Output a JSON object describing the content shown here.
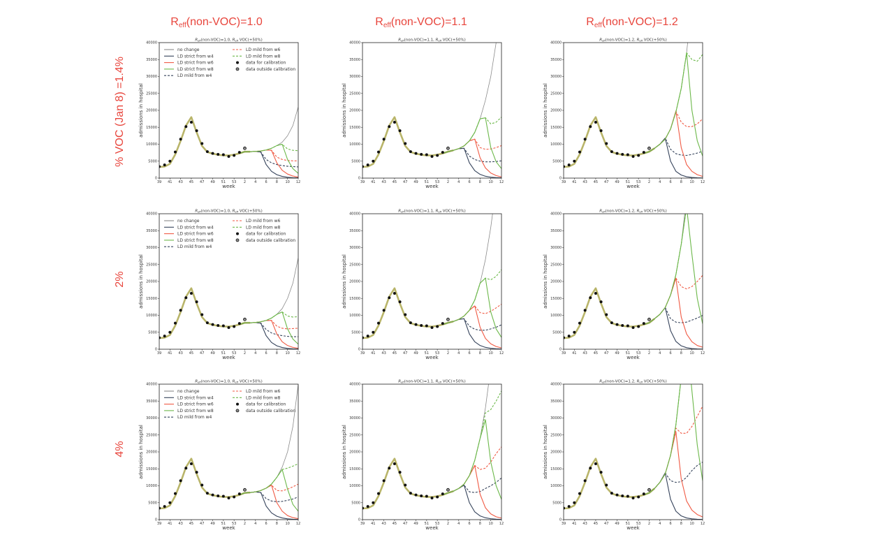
{
  "column_titles": [
    {
      "main": "R",
      "sub": "eff",
      "rest": "(non-VOC)=1.0"
    },
    {
      "main": "R",
      "sub": "eff",
      "rest": "(non-VOC)=1.1"
    },
    {
      "main": "R",
      "sub": "eff",
      "rest": "(non-VOC)=1.2"
    }
  ],
  "row_labels": [
    "% VOC (Jan 8) =1.4%",
    "2%",
    "4%"
  ],
  "common": {
    "type": "line",
    "xlabel": "week",
    "ylabel": "admissions in hospital",
    "ylim": [
      0,
      40000
    ],
    "yticks": [
      0,
      5000,
      10000,
      15000,
      20000,
      25000,
      30000,
      35000,
      40000
    ],
    "weeks": [
      39,
      40,
      41,
      42,
      43,
      44,
      45,
      46,
      47,
      48,
      49,
      50,
      51,
      52,
      53,
      1,
      2,
      3,
      4,
      5,
      6,
      7,
      8,
      9,
      10,
      11,
      12
    ],
    "xtick_labels": [
      "39",
      "41",
      "43",
      "45",
      "47",
      "49",
      "51",
      "53",
      "2",
      "4",
      "6",
      "8",
      "10",
      "12"
    ],
    "model_fit_weeks_39_to_1": [
      3300,
      3400,
      4200,
      7000,
      11000,
      15500,
      18000,
      13500,
      9500,
      7700,
      7200,
      6900,
      6700,
      6700,
      6900,
      7300
    ],
    "projection_weeks": [
      2,
      3,
      4,
      5,
      6,
      7,
      8,
      9,
      10,
      11,
      12
    ],
    "data_for_calibration": {
      "weeks": [
        39,
        40,
        41,
        42,
        43,
        44,
        45,
        46,
        47,
        48,
        49,
        50,
        51,
        52,
        53,
        1
      ],
      "values": [
        3400,
        3900,
        5000,
        7700,
        11500,
        15200,
        16500,
        14000,
        10200,
        7800,
        7300,
        7000,
        6900,
        6400,
        6700,
        7600
      ]
    },
    "data_outside_calibration": {
      "weeks": [
        2
      ],
      "values": [
        8800
      ]
    },
    "legend": {
      "no_change": "no change",
      "strict_w4": "LD strict from w4",
      "strict_w6": "LD strict from w6",
      "strict_w8": "LD strict from w8",
      "mild_w4": "LD mild from w4",
      "mild_w6": "LD mild from w6",
      "mild_w8": "LD mild from w8",
      "data_cal": "data for calibration",
      "data_out": "data outside calibration"
    },
    "colors": {
      "no_change": "#8a8a8a",
      "w4": "#34425a",
      "w6": "#f05a44",
      "w8": "#6cb84a",
      "fit": "#b9b56a",
      "data": "#111111",
      "title": "#e8453c"
    }
  },
  "chart_data": [
    {
      "title": {
        "r": "R",
        "sub": "eff",
        "a": "(non-VOC)=1.0, ",
        "r2": "R",
        "sub2": "eff",
        "b": " VOC(+50%)"
      },
      "legend_shown": true,
      "series": {
        "no_change": [
          7800,
          7800,
          7900,
          8000,
          8300,
          8800,
          9600,
          10600,
          12500,
          15500,
          21000
        ],
        "strict_w4": [
          7800,
          7800,
          7900,
          7700,
          4000,
          2000,
          1000,
          500,
          250,
          130,
          60
        ],
        "mild_w4": [
          7800,
          7800,
          7900,
          7700,
          5500,
          4500,
          4000,
          3700,
          3500,
          3400,
          3300
        ],
        "strict_w6": [
          7800,
          7800,
          7900,
          8000,
          8300,
          8200,
          4500,
          2300,
          1200,
          600,
          300
        ],
        "mild_w6": [
          7800,
          7800,
          7900,
          8000,
          8300,
          8200,
          6200,
          5500,
          5200,
          5100,
          5100
        ],
        "strict_w8": [
          7800,
          7800,
          7900,
          8000,
          8300,
          8800,
          9600,
          10000,
          5500,
          2800,
          1400
        ],
        "mild_w8": [
          7800,
          7800,
          7900,
          8000,
          8300,
          8800,
          9600,
          10000,
          8600,
          8200,
          8100
        ]
      }
    },
    {
      "title": {
        "r": "R",
        "sub": "eff",
        "a": "(non-VOC)=1.1, ",
        "r2": "R",
        "sub2": "eff",
        "b": " VOC(+50%)"
      },
      "legend_shown": false,
      "series": {
        "no_change": [
          7800,
          8200,
          8700,
          9500,
          11000,
          13500,
          17500,
          23000,
          30000,
          40000,
          50000
        ],
        "strict_w4": [
          7800,
          8200,
          8700,
          8800,
          4500,
          2200,
          1100,
          550,
          280,
          140,
          70
        ],
        "mild_w4": [
          7800,
          8200,
          8700,
          8800,
          6500,
          5500,
          5000,
          4800,
          4800,
          4900,
          5100
        ],
        "strict_w6": [
          7800,
          8200,
          8700,
          9500,
          11000,
          11500,
          6000,
          3000,
          1500,
          750,
          350
        ],
        "mild_w6": [
          7800,
          8200,
          8700,
          9500,
          11000,
          11500,
          9000,
          8500,
          8600,
          9000,
          9600
        ],
        "strict_w8": [
          7800,
          8200,
          8700,
          9500,
          11000,
          13500,
          17500,
          17800,
          9000,
          4800,
          2800
        ],
        "mild_w8": [
          7800,
          8200,
          8700,
          9500,
          11000,
          13500,
          17500,
          17800,
          16000,
          16500,
          18000
        ]
      }
    },
    {
      "title": {
        "r": "R",
        "sub": "eff",
        "a": "(non-VOC)=1.2, ",
        "r2": "R",
        "sub2": "eff",
        "b": " VOC(+50%)"
      },
      "legend_shown": false,
      "series": {
        "no_change": [
          7800,
          8800,
          10000,
          11500,
          14500,
          19500,
          26500,
          37000,
          52000,
          70000,
          95000
        ],
        "strict_w4": [
          7800,
          8800,
          10000,
          11800,
          5000,
          2000,
          900,
          400,
          200,
          100,
          50
        ],
        "mild_w4": [
          7800,
          8800,
          10000,
          11800,
          8500,
          7200,
          6800,
          6700,
          7000,
          7400,
          7900
        ],
        "strict_w6": [
          7800,
          8800,
          10000,
          11500,
          14500,
          19800,
          9000,
          4000,
          2000,
          1000,
          500
        ],
        "mild_w6": [
          7800,
          8800,
          10000,
          11500,
          14500,
          19800,
          16500,
          15200,
          15200,
          16000,
          17500
        ],
        "strict_w8": [
          7800,
          8800,
          10000,
          11500,
          14500,
          19500,
          26500,
          37000,
          20000,
          11000,
          6500
        ],
        "mild_w8": [
          7800,
          8800,
          10000,
          11500,
          14500,
          19500,
          26500,
          37000,
          35000,
          34500,
          36500
        ]
      }
    },
    {
      "title": {
        "r": "R",
        "sub": "eff",
        "a": "(non-VOC)=1.0, ",
        "r2": "R",
        "sub2": "eff",
        "b": " VOC(+50%)"
      },
      "legend_shown": true,
      "series": {
        "no_change": [
          7800,
          7800,
          7900,
          8100,
          8500,
          9200,
          10300,
          12000,
          15000,
          19500,
          27000
        ],
        "strict_w4": [
          7800,
          7800,
          7900,
          7700,
          4000,
          2000,
          1000,
          500,
          250,
          120,
          60
        ],
        "mild_w4": [
          7800,
          7800,
          7900,
          7700,
          5800,
          4800,
          4300,
          4000,
          3800,
          3700,
          3700
        ],
        "strict_w6": [
          7800,
          7800,
          7900,
          8100,
          8500,
          8500,
          4500,
          2200,
          1100,
          550,
          280
        ],
        "mild_w6": [
          7800,
          7800,
          7900,
          8100,
          8500,
          8500,
          6800,
          6200,
          6000,
          6100,
          6200
        ],
        "strict_w8": [
          7800,
          7800,
          7900,
          8100,
          8500,
          9200,
          10300,
          11000,
          6000,
          3000,
          1500
        ],
        "mild_w8": [
          7800,
          7800,
          7900,
          8100,
          8500,
          9200,
          10300,
          11000,
          9800,
          9500,
          9600
        ]
      }
    },
    {
      "title": {
        "r": "R",
        "sub": "eff",
        "a": "(non-VOC)=1.1, ",
        "r2": "R",
        "sub2": "eff",
        "b": " VOC(+50%)"
      },
      "legend_shown": false,
      "series": {
        "no_change": [
          7800,
          8200,
          8800,
          9800,
          11500,
          14500,
          19500,
          26500,
          36000,
          48000,
          64000
        ],
        "strict_w4": [
          7800,
          8200,
          8800,
          9000,
          4500,
          2200,
          1100,
          550,
          280,
          140,
          70
        ],
        "mild_w4": [
          7800,
          8200,
          8800,
          9000,
          6800,
          5900,
          5600,
          5600,
          6000,
          6500,
          7200
        ],
        "strict_w6": [
          7800,
          8200,
          8800,
          9800,
          11500,
          12800,
          6500,
          3200,
          1600,
          800,
          400
        ],
        "mild_w6": [
          7800,
          8200,
          8800,
          9800,
          11500,
          12800,
          10800,
          10500,
          11200,
          12200,
          13300
        ],
        "strict_w8": [
          7800,
          8200,
          8800,
          9800,
          11500,
          14500,
          19500,
          21000,
          11000,
          6000,
          3500
        ],
        "mild_w8": [
          7800,
          8200,
          8800,
          9800,
          11500,
          14500,
          19500,
          21000,
          20500,
          21500,
          23500
        ]
      }
    },
    {
      "title": {
        "r": "R",
        "sub": "eff",
        "a": "(non-VOC)=1.2, ",
        "r2": "R",
        "sub2": "eff",
        "b": " VOC(+50%)"
      },
      "legend_shown": false,
      "series": {
        "no_change": [
          7800,
          9000,
          10300,
          12300,
          16000,
          22000,
          31000,
          45000,
          64000,
          90000,
          125000
        ],
        "strict_w4": [
          7800,
          9000,
          10300,
          12300,
          5500,
          2300,
          1000,
          450,
          200,
          100,
          50
        ],
        "mild_w4": [
          7800,
          9000,
          10300,
          12300,
          9000,
          8000,
          7800,
          8000,
          8600,
          9200,
          10000
        ],
        "strict_w6": [
          7800,
          9000,
          10300,
          12300,
          16000,
          21000,
          9500,
          4500,
          2200,
          1100,
          600
        ],
        "mild_w6": [
          7800,
          9000,
          10300,
          12300,
          16000,
          21000,
          18500,
          17800,
          18500,
          20000,
          21800
        ],
        "strict_w8": [
          7800,
          9000,
          10300,
          12300,
          16000,
          22000,
          31000,
          42000,
          28000,
          15000,
          7500
        ],
        "mild_w8": [
          7800,
          9000,
          10300,
          12300,
          16000,
          22000,
          31000,
          42000,
          41000,
          43000,
          46000
        ]
      }
    },
    {
      "title": {
        "r": "R",
        "sub": "eff",
        "a": "(non-VOC)=1.0, ",
        "r2": "R",
        "sub2": "eff",
        "b": " VOC(+50%)"
      },
      "legend_shown": true,
      "series": {
        "no_change": [
          7900,
          8000,
          8200,
          8600,
          9300,
          10500,
          12500,
          15500,
          20000,
          27500,
          40000
        ],
        "strict_w4": [
          7900,
          8000,
          8200,
          8000,
          4000,
          2000,
          1000,
          500,
          250,
          120,
          60
        ],
        "mild_w4": [
          7900,
          8000,
          8200,
          8000,
          6200,
          5500,
          5300,
          5400,
          5700,
          6100,
          6700
        ],
        "strict_w6": [
          7900,
          8000,
          8200,
          8600,
          9300,
          10200,
          5000,
          2500,
          1200,
          600,
          300
        ],
        "mild_w6": [
          7900,
          8000,
          8200,
          8600,
          9300,
          10200,
          8600,
          8500,
          9000,
          9700,
          10500
        ],
        "strict_w8": [
          7900,
          8000,
          8200,
          8600,
          9300,
          10500,
          12500,
          14800,
          9000,
          4500,
          2500
        ],
        "mild_w8": [
          7900,
          8000,
          8200,
          8600,
          9300,
          10500,
          12500,
          14800,
          15200,
          15800,
          16500
        ]
      }
    },
    {
      "title": {
        "r": "R",
        "sub": "eff",
        "a": "(non-VOC)=1.1, ",
        "r2": "R",
        "sub2": "eff",
        "b": " VOC(+50%)"
      },
      "legend_shown": false,
      "series": {
        "no_change": [
          7900,
          8400,
          9200,
          10500,
          13000,
          17500,
          24000,
          33000,
          45000,
          62000,
          85000
        ],
        "strict_w4": [
          7900,
          8400,
          9200,
          10200,
          5000,
          2300,
          1100,
          550,
          280,
          140,
          70
        ],
        "mild_w4": [
          7900,
          8400,
          9200,
          10200,
          8200,
          8000,
          8300,
          9200,
          10000,
          11000,
          12300
        ],
        "strict_w6": [
          7900,
          8400,
          9200,
          10500,
          13000,
          16000,
          7500,
          3500,
          1700,
          850,
          450
        ],
        "mild_w6": [
          7900,
          8400,
          9200,
          10500,
          13000,
          16000,
          14800,
          15200,
          17000,
          19500,
          21500
        ],
        "strict_w8": [
          7900,
          8400,
          9200,
          10500,
          13000,
          17500,
          24000,
          29500,
          17000,
          10000,
          6000
        ],
        "mild_w8": [
          7900,
          8400,
          9200,
          10500,
          13000,
          17500,
          24000,
          31500,
          32500,
          35000,
          38000
        ]
      }
    },
    {
      "title": {
        "r": "R",
        "sub": "eff",
        "a": "(non-VOC)=1.2, ",
        "r2": "R",
        "sub2": "eff",
        "b": " VOC(+50%)"
      },
      "legend_shown": false,
      "series": {
        "no_change": [
          7900,
          9200,
          11000,
          13500,
          19000,
          28000,
          42000,
          62000,
          90000,
          130000,
          180000
        ],
        "strict_w4": [
          7900,
          9200,
          11000,
          13800,
          6000,
          2500,
          1100,
          500,
          250,
          120,
          60
        ],
        "mild_w4": [
          7900,
          9200,
          11000,
          13800,
          11500,
          11000,
          11200,
          12500,
          14500,
          16000,
          17000
        ],
        "strict_w6": [
          7900,
          9200,
          11000,
          13500,
          19000,
          26000,
          12000,
          5500,
          2800,
          1500,
          800
        ],
        "mild_w6": [
          7900,
          9200,
          11000,
          13500,
          19000,
          27000,
          25500,
          25500,
          27500,
          30500,
          33500
        ],
        "strict_w8": [
          7900,
          9200,
          11000,
          13500,
          19000,
          28000,
          42000,
          55000,
          38000,
          22000,
          11500
        ],
        "mild_w8": [
          7900,
          9200,
          11000,
          13500,
          19000,
          28000,
          42000,
          55000,
          60000,
          66000,
          75000
        ]
      }
    }
  ]
}
